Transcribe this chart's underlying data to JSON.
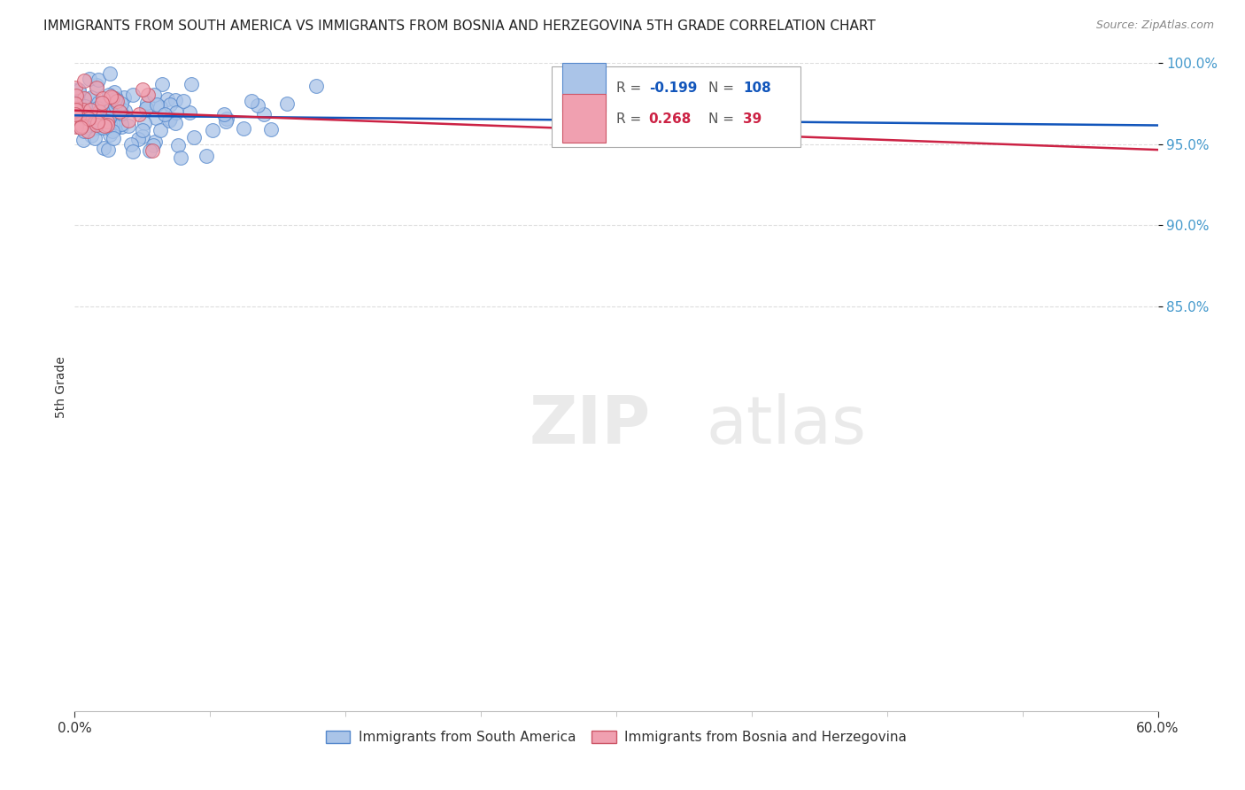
{
  "title": "IMMIGRANTS FROM SOUTH AMERICA VS IMMIGRANTS FROM BOSNIA AND HERZEGOVINA 5TH GRADE CORRELATION CHART",
  "source": "Source: ZipAtlas.com",
  "ylabel": "5th Grade",
  "legend_label1": "Immigrants from South America",
  "legend_label2": "Immigrants from Bosnia and Herzegovina",
  "r1": -0.199,
  "n1": 108,
  "r2": 0.268,
  "n2": 39,
  "color1_face": "#aac4e8",
  "color1_edge": "#5588cc",
  "color2_face": "#f0a0b0",
  "color2_edge": "#cc5566",
  "trendline1_color": "#1155bb",
  "trendline2_color": "#cc2244",
  "xmin": 0.0,
  "xmax": 60.0,
  "ymin": 60.0,
  "ymax": 100.0,
  "ytick_color": "#4499cc",
  "xtick_color": "#333333",
  "watermark": "ZIPatlas",
  "watermark_color": "#dddddd",
  "grid_color": "#dddddd",
  "spine_color": "#bbbbbb"
}
